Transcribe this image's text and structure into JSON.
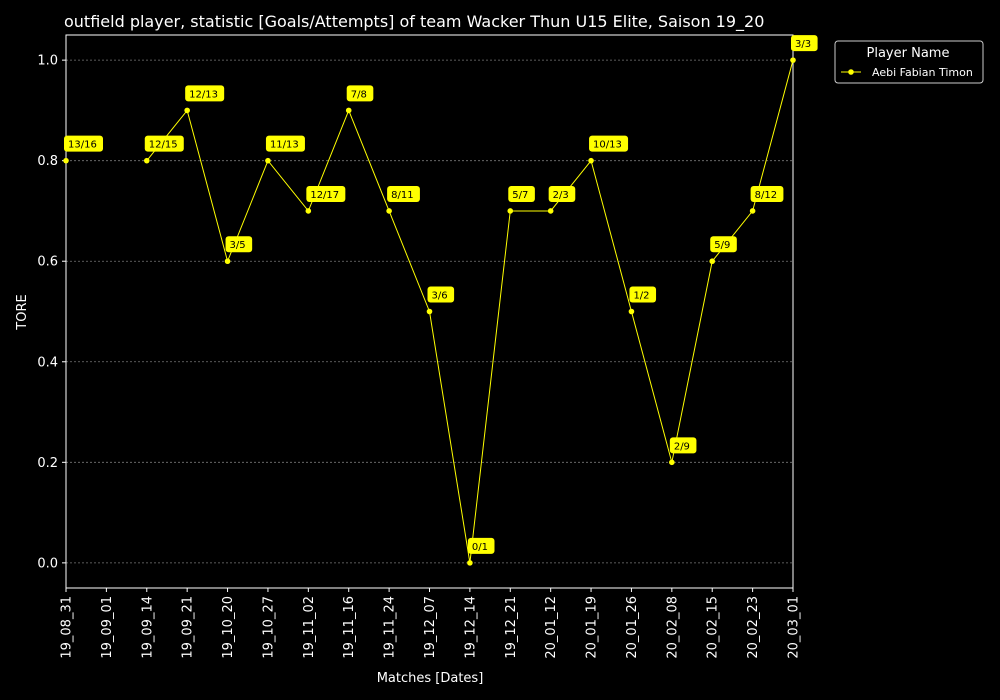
{
  "chart_data": {
    "type": "line",
    "title": "outfield player, statistic [Goals/Attempts] of team Wacker Thun U15 Elite, Saison 19_20",
    "xlabel": "Matches [Dates]",
    "ylabel": "TORE",
    "ylim": [
      -0.05,
      1.05
    ],
    "yticks": [
      "0.0",
      "0.2",
      "0.4",
      "0.6",
      "0.8",
      "1.0"
    ],
    "grid": true,
    "legend": {
      "title": "Player Name",
      "placement": "top-right outside"
    },
    "categories": [
      "19_08_31",
      "19_09_01",
      "19_09_14",
      "19_09_21",
      "19_10_20",
      "19_10_27",
      "19_11_02",
      "19_11_16",
      "19_11_24",
      "19_12_07",
      "19_12_14",
      "19_12_21",
      "20_01_12",
      "20_01_19",
      "20_01_26",
      "20_02_08",
      "20_02_15",
      "20_02_23",
      "20_03_01"
    ],
    "series": [
      {
        "name": "Aebi Fabian Timon",
        "color": "#ffff00",
        "values": [
          0.8,
          null,
          0.8,
          0.9,
          0.6,
          0.8,
          0.7,
          0.9,
          0.7,
          0.5,
          0.0,
          0.7,
          0.7,
          0.8,
          0.5,
          0.2,
          0.6,
          0.7,
          1.0
        ],
        "labels": [
          "13/16",
          "",
          "12/15",
          "12/13",
          "3/5",
          "11/13",
          "12/17",
          "7/8",
          "8/11",
          "3/6",
          "0/1",
          "5/7",
          "2/3",
          "10/13",
          "1/2",
          "2/9",
          "5/9",
          "8/12",
          "3/3"
        ]
      }
    ]
  }
}
